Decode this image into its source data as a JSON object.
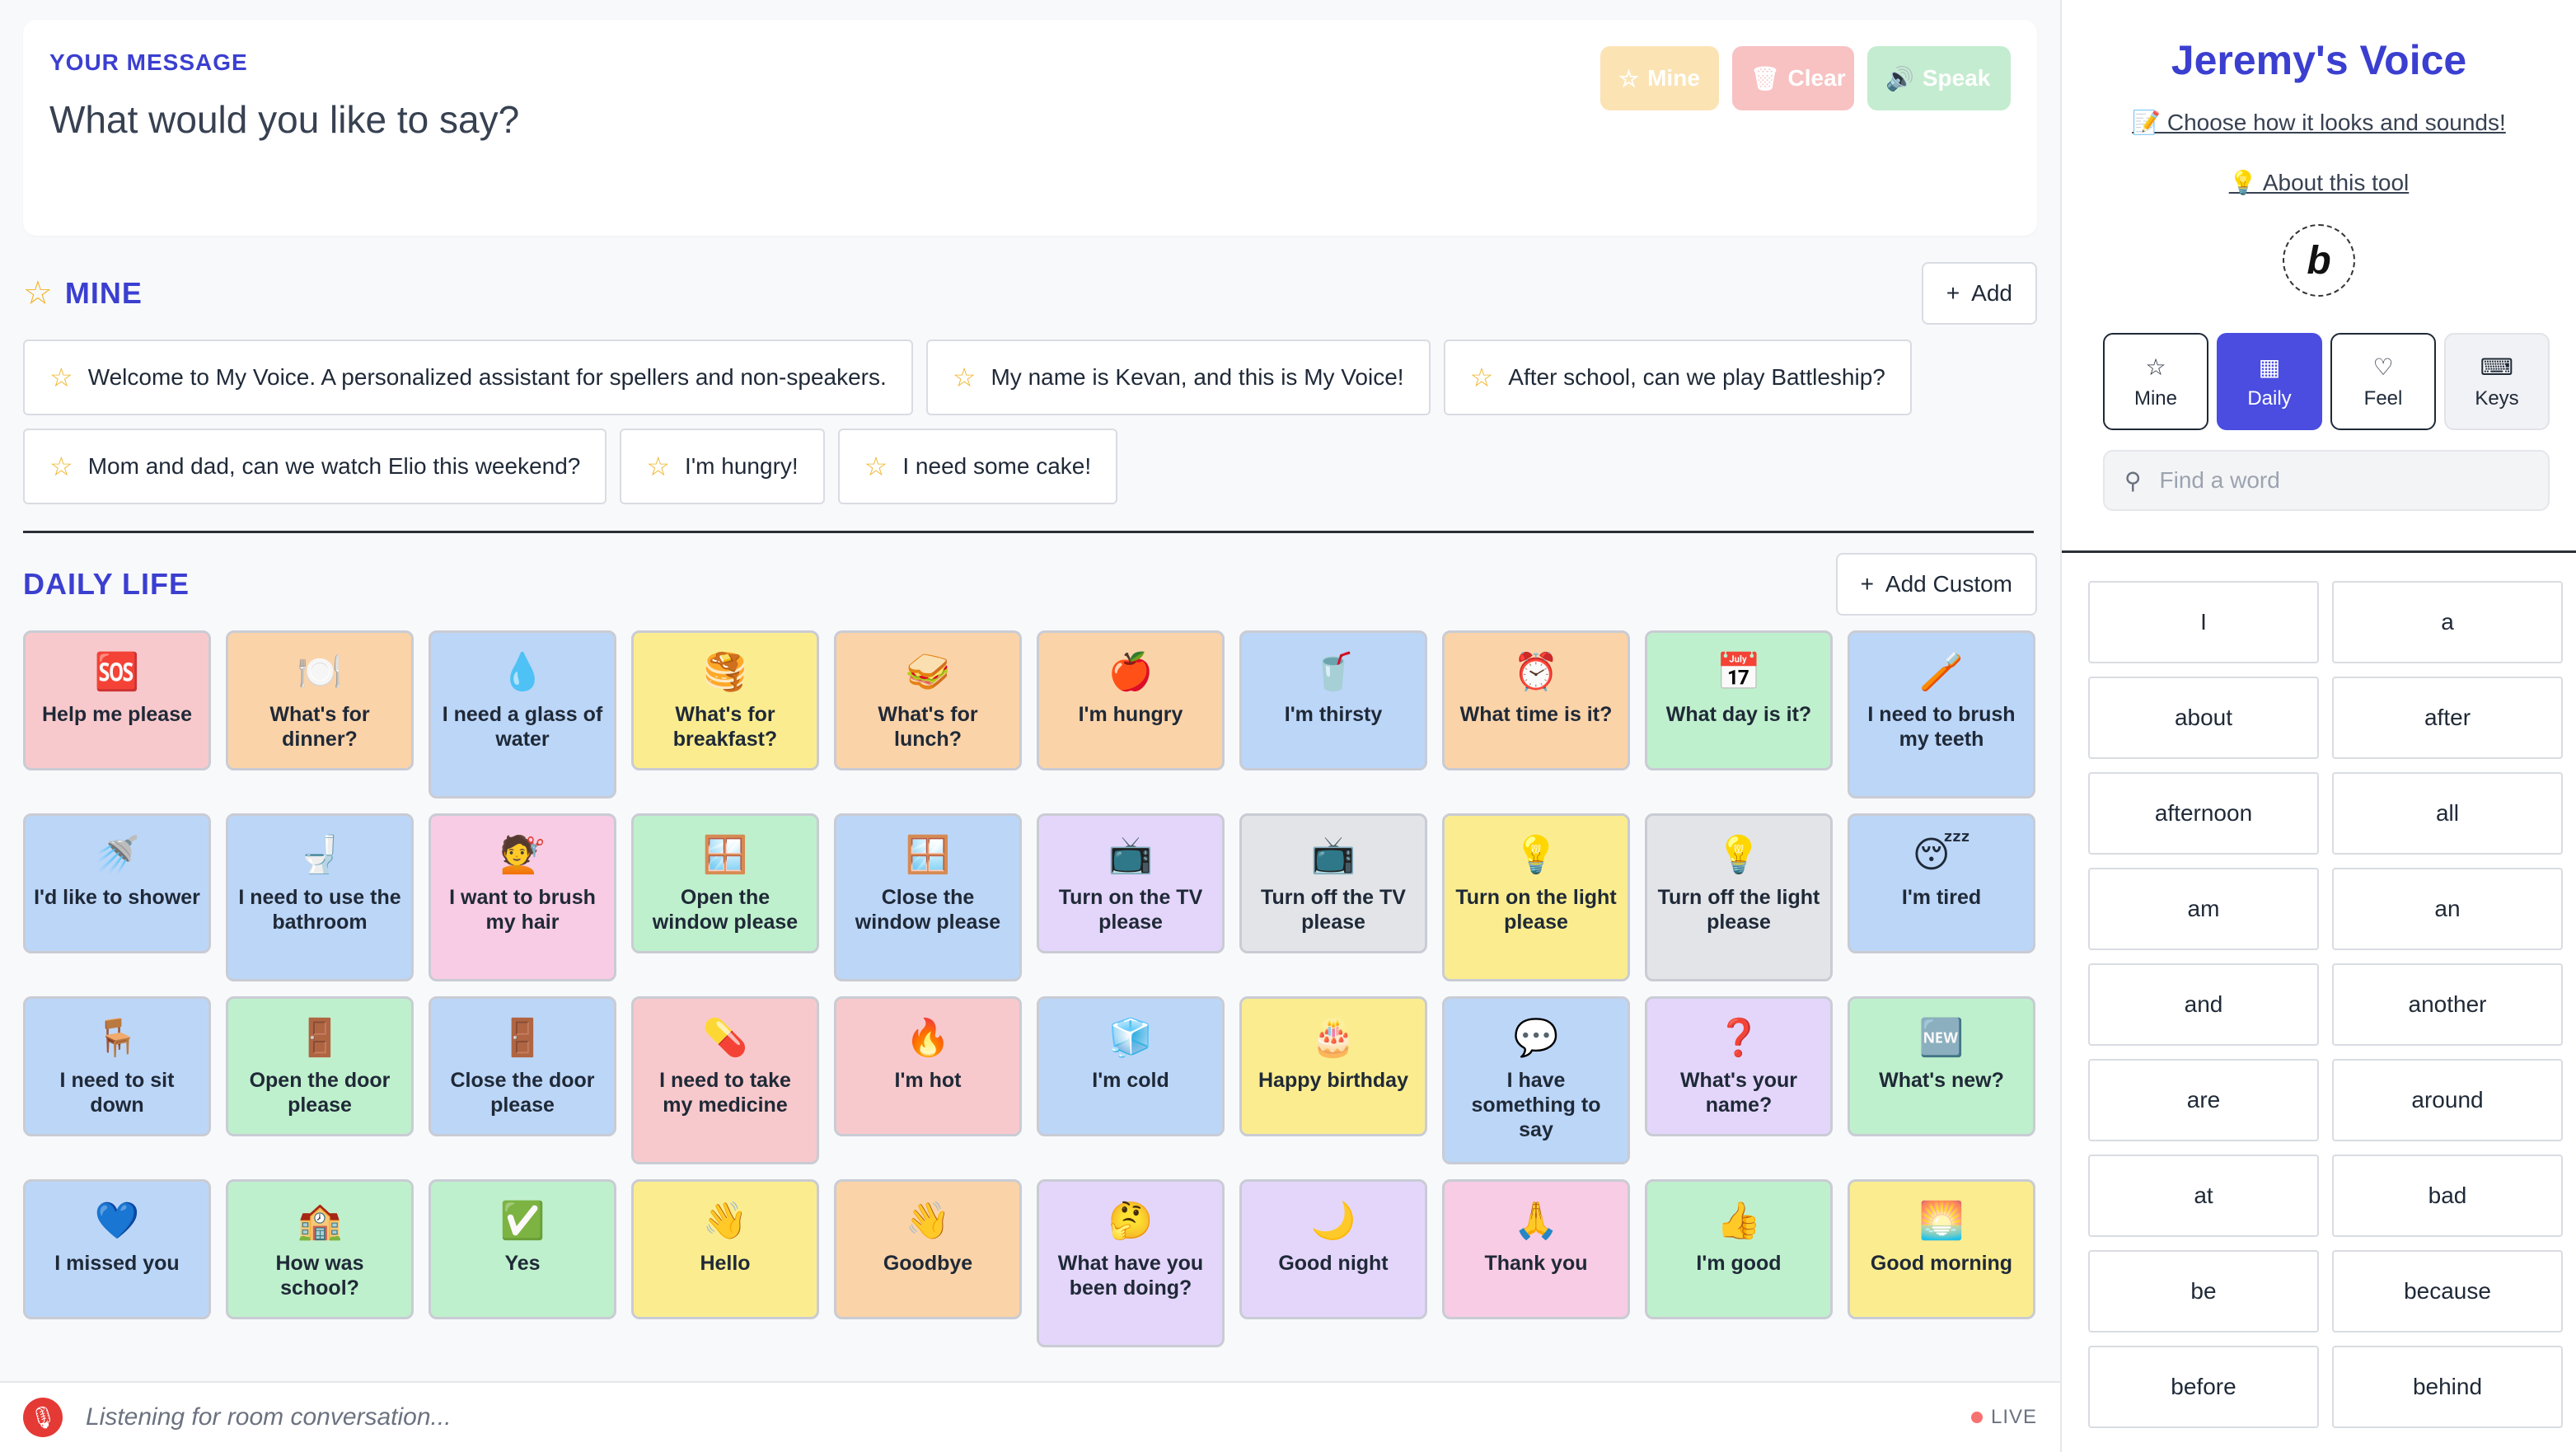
{
  "message": {
    "label": "YOUR MESSAGE",
    "placeholder": "What would you like to say?",
    "buttons": {
      "mine": "Mine",
      "clear": "Clear",
      "speak": "Speak"
    }
  },
  "mine_section": {
    "title": "MINE",
    "add_label": "Add",
    "phrases": [
      "Welcome to My Voice. A personalized assistant for spellers and non-speakers.",
      "My name is Kevan, and this is My Voice!",
      "After school, can we play Battleship?",
      "Mom and dad, can we watch Elio this weekend?",
      "I'm hungry!",
      "I need some cake!"
    ]
  },
  "daily_section": {
    "title": "DAILY LIFE",
    "add_label": "Add Custom",
    "tiles": [
      {
        "label": "Help me please",
        "emoji": "🆘",
        "color": "#f8c9cc"
      },
      {
        "label": "What's for dinner?",
        "emoji": "🍽️",
        "color": "#fbd3a8"
      },
      {
        "label": "I need a glass of water",
        "emoji": "💧",
        "color": "#bcd6f8"
      },
      {
        "label": "What's for breakfast?",
        "emoji": "🥞",
        "color": "#fbed8f"
      },
      {
        "label": "What's for lunch?",
        "emoji": "🥪",
        "color": "#fbd3a8"
      },
      {
        "label": "I'm hungry",
        "emoji": "🍎",
        "color": "#fbd3a8"
      },
      {
        "label": "I'm thirsty",
        "emoji": "🥤",
        "color": "#bcd6f8"
      },
      {
        "label": "What time is it?",
        "emoji": "⏰",
        "color": "#fbd3a8"
      },
      {
        "label": "What day is it?",
        "emoji": "📅",
        "color": "#bff0cd"
      },
      {
        "label": "I need to brush my teeth",
        "emoji": "🪥",
        "color": "#bcd6f8"
      },
      {
        "label": "I'd like to shower",
        "emoji": "🚿",
        "color": "#bcd6f8"
      },
      {
        "label": "I need to use the bathroom",
        "emoji": "🚽",
        "color": "#bcd6f8"
      },
      {
        "label": "I want to brush my hair",
        "emoji": "💇",
        "color": "#f8cce4"
      },
      {
        "label": "Open the window please",
        "emoji": "🪟",
        "color": "#bff0cd"
      },
      {
        "label": "Close the window please",
        "emoji": "🪟",
        "color": "#bcd6f8"
      },
      {
        "label": "Turn on the TV please",
        "emoji": "📺",
        "color": "#e4d6fb"
      },
      {
        "label": "Turn off the TV please",
        "emoji": "📺",
        "color": "#e2e4e8"
      },
      {
        "label": "Turn on the light please",
        "emoji": "💡",
        "color": "#fbed8f"
      },
      {
        "label": "Turn off the light please",
        "emoji": "💡",
        "color": "#e2e4e8"
      },
      {
        "label": "I'm tired",
        "emoji": "😴",
        "color": "#bcd6f8"
      },
      {
        "label": "I need to sit down",
        "emoji": "🪑",
        "color": "#bcd6f8"
      },
      {
        "label": "Open the door please",
        "emoji": "🚪",
        "color": "#bff0cd"
      },
      {
        "label": "Close the door please",
        "emoji": "🚪",
        "color": "#bcd6f8"
      },
      {
        "label": "I need to take my medicine",
        "emoji": "💊",
        "color": "#f8c9cc"
      },
      {
        "label": "I'm hot",
        "emoji": "🔥",
        "color": "#f8c9cc"
      },
      {
        "label": "I'm cold",
        "emoji": "🧊",
        "color": "#bcd6f8"
      },
      {
        "label": "Happy birthday",
        "emoji": "🎂",
        "color": "#fbed8f"
      },
      {
        "label": "I have something to say",
        "emoji": "💬",
        "color": "#bcd6f8"
      },
      {
        "label": "What's your name?",
        "emoji": "❓",
        "color": "#e4d6fb"
      },
      {
        "label": "What's new?",
        "emoji": "🆕",
        "color": "#bff0cd"
      },
      {
        "label": "I missed you",
        "emoji": "💙",
        "color": "#bcd6f8"
      },
      {
        "label": "How was school?",
        "emoji": "🏫",
        "color": "#bff0cd"
      },
      {
        "label": "Yes",
        "emoji": "✅",
        "color": "#bff0cd"
      },
      {
        "label": "Hello",
        "emoji": "👋",
        "color": "#fbed8f"
      },
      {
        "label": "Goodbye",
        "emoji": "👋",
        "color": "#fbd3a8"
      },
      {
        "label": "What have you been doing?",
        "emoji": "🤔",
        "color": "#e4d6fb"
      },
      {
        "label": "Good night",
        "emoji": "🌙",
        "color": "#e4d6fb"
      },
      {
        "label": "Thank you",
        "emoji": "🙏",
        "color": "#f8cce4"
      },
      {
        "label": "I'm good",
        "emoji": "👍",
        "color": "#bff0cd"
      },
      {
        "label": "Good morning",
        "emoji": "🌅",
        "color": "#fbed8f"
      }
    ]
  },
  "listen_bar": {
    "text": "Listening for room conversation...",
    "live_label": "LIVE"
  },
  "sidebar": {
    "brand": "Jeremy's Voice",
    "customize_link": "📝 Choose how it looks and sounds!",
    "about_link": "💡 About this tool",
    "badge_letter": "b",
    "tabs": [
      {
        "label": "Mine",
        "icon": "star-icon",
        "glyph": "☆",
        "active": false
      },
      {
        "label": "Daily",
        "icon": "calendar-icon",
        "glyph": "▦",
        "active": true
      },
      {
        "label": "Feel",
        "icon": "heart-icon",
        "glyph": "♡",
        "active": false
      },
      {
        "label": "Keys",
        "icon": "keyboard-icon",
        "glyph": "⌨",
        "active": false
      }
    ],
    "search_placeholder": "Find a word",
    "words": [
      "I",
      "a",
      "about",
      "after",
      "afternoon",
      "all",
      "am",
      "an",
      "and",
      "another",
      "are",
      "around",
      "at",
      "bad",
      "be",
      "because",
      "before",
      "behind"
    ]
  },
  "colors": {
    "accent": "#3b3fd0",
    "active_tab": "#4a4de0",
    "live_dot": "#f87171",
    "mic": "#e53935"
  }
}
